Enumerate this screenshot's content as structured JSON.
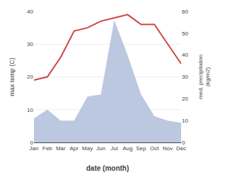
{
  "chart_data": {
    "type": "line",
    "categories": [
      "Jan",
      "Feb",
      "Mar",
      "Apr",
      "May",
      "Jun",
      "Jul",
      "Aug",
      "Sep",
      "Oct",
      "Nov",
      "Dec"
    ],
    "series": [
      {
        "type": "area",
        "axis": "y2",
        "color": "#bcc8e0",
        "values": [
          11,
          15,
          10,
          10,
          21,
          22,
          56,
          40,
          22,
          12,
          10,
          9
        ]
      },
      {
        "type": "line",
        "color": "#cc4444",
        "values": [
          19,
          20,
          26,
          34,
          35,
          37,
          38,
          39,
          36,
          36,
          30,
          24
        ]
      }
    ],
    "xlabel": "date (month)",
    "ylabel": "max temp (C)",
    "y2label": "med. precipitation\n(kg/m2)",
    "ylim": [
      0,
      40
    ],
    "yticks": [
      0,
      10,
      20,
      30,
      40
    ],
    "y2lim": [
      0,
      60
    ],
    "y2ticks": [
      0,
      10,
      20,
      30,
      40,
      50,
      60
    ],
    "grid": true
  }
}
